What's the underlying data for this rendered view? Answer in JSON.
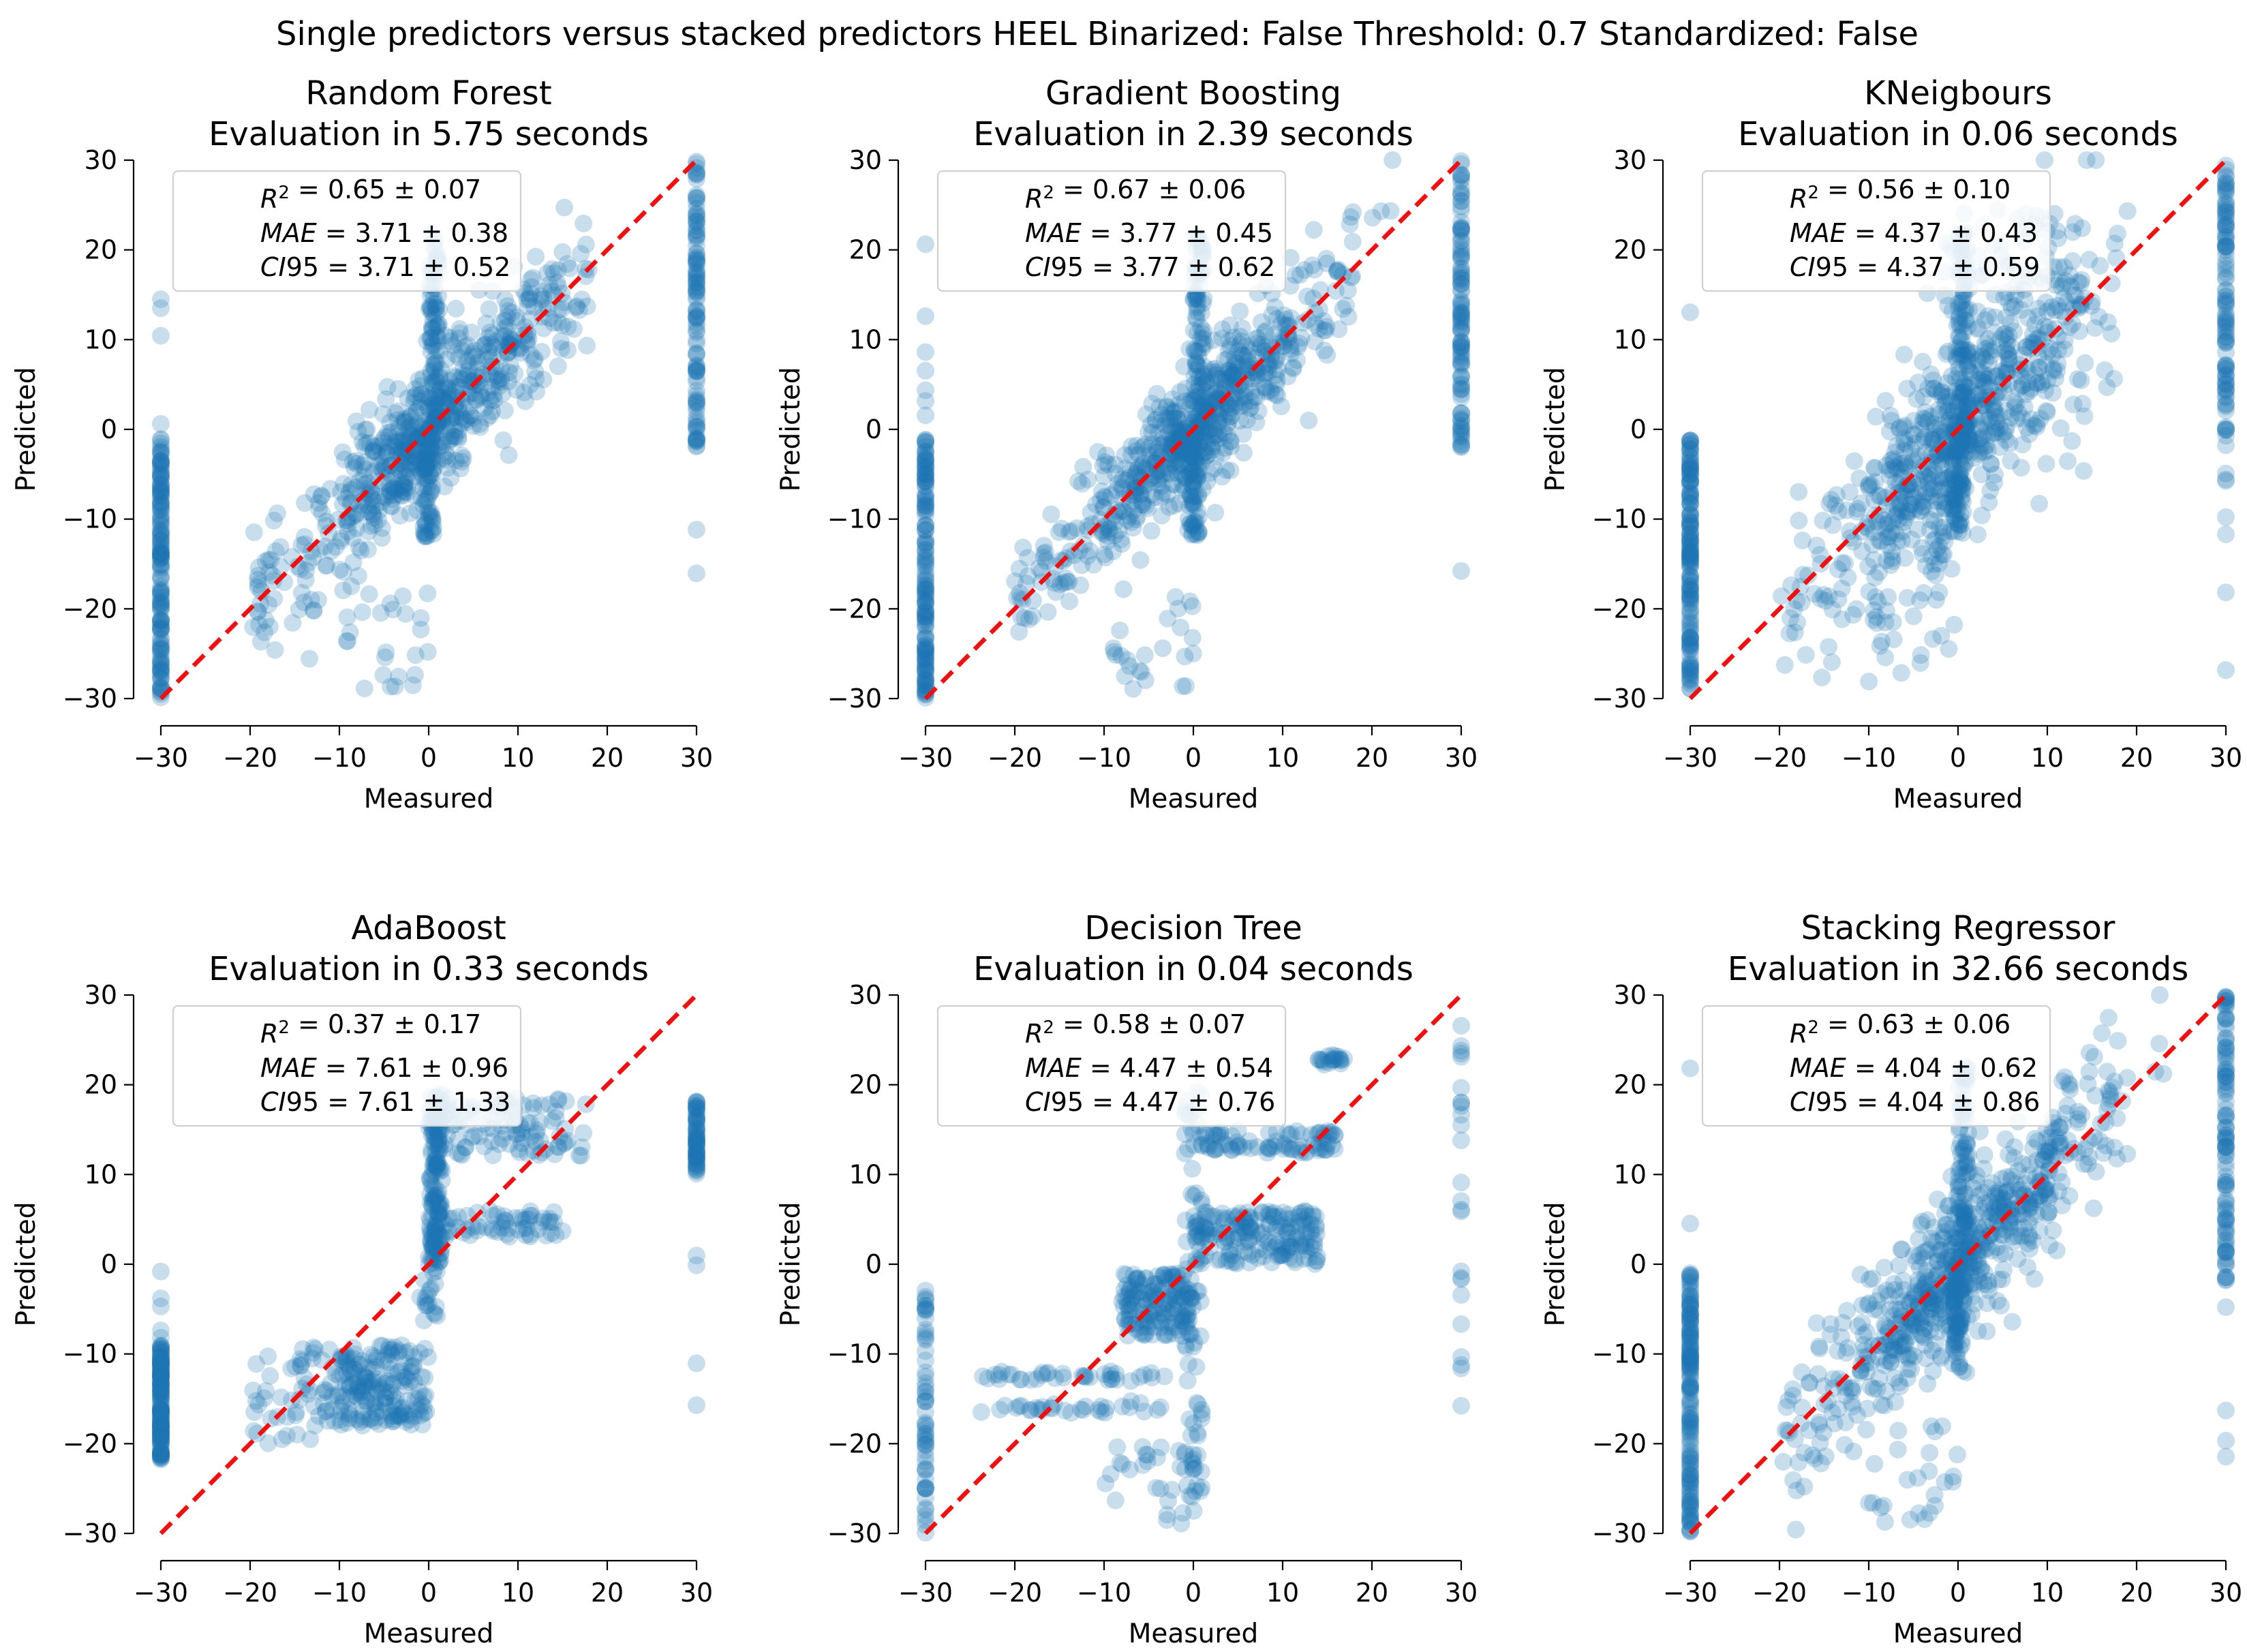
{
  "figure": {
    "suptitle": "Single predictors versus stacked predictors HEEL Binarized: False Threshold: 0.7 Standardized: False",
    "colors": {
      "points": "#1f77b4",
      "identity_line": "#ee1111"
    }
  },
  "chart_data": [
    {
      "type": "scatter",
      "title_line1": "Random Forest",
      "title_line2": "Evaluation in 5.75 seconds",
      "xlabel": "Measured",
      "ylabel": "Predicted",
      "xlim": [
        -30,
        30
      ],
      "ylim": [
        -30,
        30
      ],
      "xticks": [
        -30,
        -20,
        -10,
        0,
        10,
        20,
        30
      ],
      "yticks": [
        -30,
        -20,
        -10,
        0,
        10,
        20,
        30
      ],
      "xtick_labels": [
        "−30",
        "−20",
        "−10",
        "0",
        "10",
        "20",
        "30"
      ],
      "ytick_labels": [
        "−30",
        "−20",
        "−10",
        "0",
        "10",
        "20",
        "30"
      ],
      "legend": {
        "r2_mean": "0.65",
        "r2_std": "0.07",
        "mae_mean": "3.71",
        "mae_std": "0.38",
        "ci95_mean": "3.71",
        "ci95_std": "0.52"
      },
      "model": "rf",
      "identity_line": {
        "from": [
          -30,
          -30
        ],
        "to": [
          30,
          30
        ]
      }
    },
    {
      "type": "scatter",
      "title_line1": "Gradient Boosting",
      "title_line2": "Evaluation in 2.39 seconds",
      "xlabel": "Measured",
      "ylabel": "Predicted",
      "xlim": [
        -30,
        30
      ],
      "ylim": [
        -30,
        30
      ],
      "xticks": [
        -30,
        -20,
        -10,
        0,
        10,
        20,
        30
      ],
      "yticks": [
        -30,
        -20,
        -10,
        0,
        10,
        20,
        30
      ],
      "xtick_labels": [
        "−30",
        "−20",
        "−10",
        "0",
        "10",
        "20",
        "30"
      ],
      "ytick_labels": [
        "−30",
        "−20",
        "−10",
        "0",
        "10",
        "20",
        "30"
      ],
      "legend": {
        "r2_mean": "0.67",
        "r2_std": "0.06",
        "mae_mean": "3.77",
        "mae_std": "0.45",
        "ci95_mean": "3.77",
        "ci95_std": "0.62"
      },
      "model": "gb",
      "identity_line": {
        "from": [
          -30,
          -30
        ],
        "to": [
          30,
          30
        ]
      }
    },
    {
      "type": "scatter",
      "title_line1": "KNeigbours",
      "title_line2": "Evaluation in 0.06 seconds",
      "xlabel": "Measured",
      "ylabel": "Predicted",
      "xlim": [
        -30,
        30
      ],
      "ylim": [
        -30,
        30
      ],
      "xticks": [
        -30,
        -20,
        -10,
        0,
        10,
        20,
        30
      ],
      "yticks": [
        -30,
        -20,
        -10,
        0,
        10,
        20,
        30
      ],
      "xtick_labels": [
        "−30",
        "−20",
        "−10",
        "0",
        "10",
        "20",
        "30"
      ],
      "ytick_labels": [
        "−30",
        "−20",
        "−10",
        "0",
        "10",
        "20",
        "30"
      ],
      "legend": {
        "r2_mean": "0.56",
        "r2_std": "0.10",
        "mae_mean": "4.37",
        "mae_std": "0.43",
        "ci95_mean": "4.37",
        "ci95_std": "0.59"
      },
      "model": "knn",
      "identity_line": {
        "from": [
          -30,
          -30
        ],
        "to": [
          30,
          30
        ]
      }
    },
    {
      "type": "scatter",
      "title_line1": "AdaBoost",
      "title_line2": "Evaluation in 0.33 seconds",
      "xlabel": "Measured",
      "ylabel": "Predicted",
      "xlim": [
        -30,
        30
      ],
      "ylim": [
        -30,
        30
      ],
      "xticks": [
        -30,
        -20,
        -10,
        0,
        10,
        20,
        30
      ],
      "yticks": [
        -30,
        -20,
        -10,
        0,
        10,
        20,
        30
      ],
      "xtick_labels": [
        "−30",
        "−20",
        "−10",
        "0",
        "10",
        "20",
        "30"
      ],
      "ytick_labels": [
        "−30",
        "−20",
        "−10",
        "0",
        "10",
        "20",
        "30"
      ],
      "legend": {
        "r2_mean": "0.37",
        "r2_std": "0.17",
        "mae_mean": "7.61",
        "mae_std": "0.96",
        "ci95_mean": "7.61",
        "ci95_std": "1.33"
      },
      "model": "ada",
      "identity_line": {
        "from": [
          -30,
          -30
        ],
        "to": [
          30,
          30
        ]
      }
    },
    {
      "type": "scatter",
      "title_line1": "Decision Tree",
      "title_line2": "Evaluation in 0.04 seconds",
      "xlabel": "Measured",
      "ylabel": "Predicted",
      "xlim": [
        -30,
        30
      ],
      "ylim": [
        -30,
        30
      ],
      "xticks": [
        -30,
        -20,
        -10,
        0,
        10,
        20,
        30
      ],
      "yticks": [
        -30,
        -20,
        -10,
        0,
        10,
        20,
        30
      ],
      "xtick_labels": [
        "−30",
        "−20",
        "−10",
        "0",
        "10",
        "20",
        "30"
      ],
      "ytick_labels": [
        "−30",
        "−20",
        "−10",
        "0",
        "10",
        "20",
        "30"
      ],
      "legend": {
        "r2_mean": "0.58",
        "r2_std": "0.07",
        "mae_mean": "4.47",
        "mae_std": "0.54",
        "ci95_mean": "4.47",
        "ci95_std": "0.76"
      },
      "model": "dt",
      "identity_line": {
        "from": [
          -30,
          -30
        ],
        "to": [
          30,
          30
        ]
      }
    },
    {
      "type": "scatter",
      "title_line1": "Stacking Regressor",
      "title_line2": "Evaluation in 32.66 seconds",
      "xlabel": "Measured",
      "ylabel": "Predicted",
      "xlim": [
        -30,
        30
      ],
      "ylim": [
        -30,
        30
      ],
      "xticks": [
        -30,
        -20,
        -10,
        0,
        10,
        20,
        30
      ],
      "yticks": [
        -30,
        -20,
        -10,
        0,
        10,
        20,
        30
      ],
      "xtick_labels": [
        "−30",
        "−20",
        "−10",
        "0",
        "10",
        "20",
        "30"
      ],
      "ytick_labels": [
        "−30",
        "−20",
        "−10",
        "0",
        "10",
        "20",
        "30"
      ],
      "legend": {
        "r2_mean": "0.63",
        "r2_std": "0.06",
        "mae_mean": "4.04",
        "mae_std": "0.62",
        "ci95_mean": "4.04",
        "ci95_std": "0.86"
      },
      "model": "stack",
      "identity_line": {
        "from": [
          -30,
          -30
        ],
        "to": [
          30,
          30
        ]
      }
    }
  ]
}
